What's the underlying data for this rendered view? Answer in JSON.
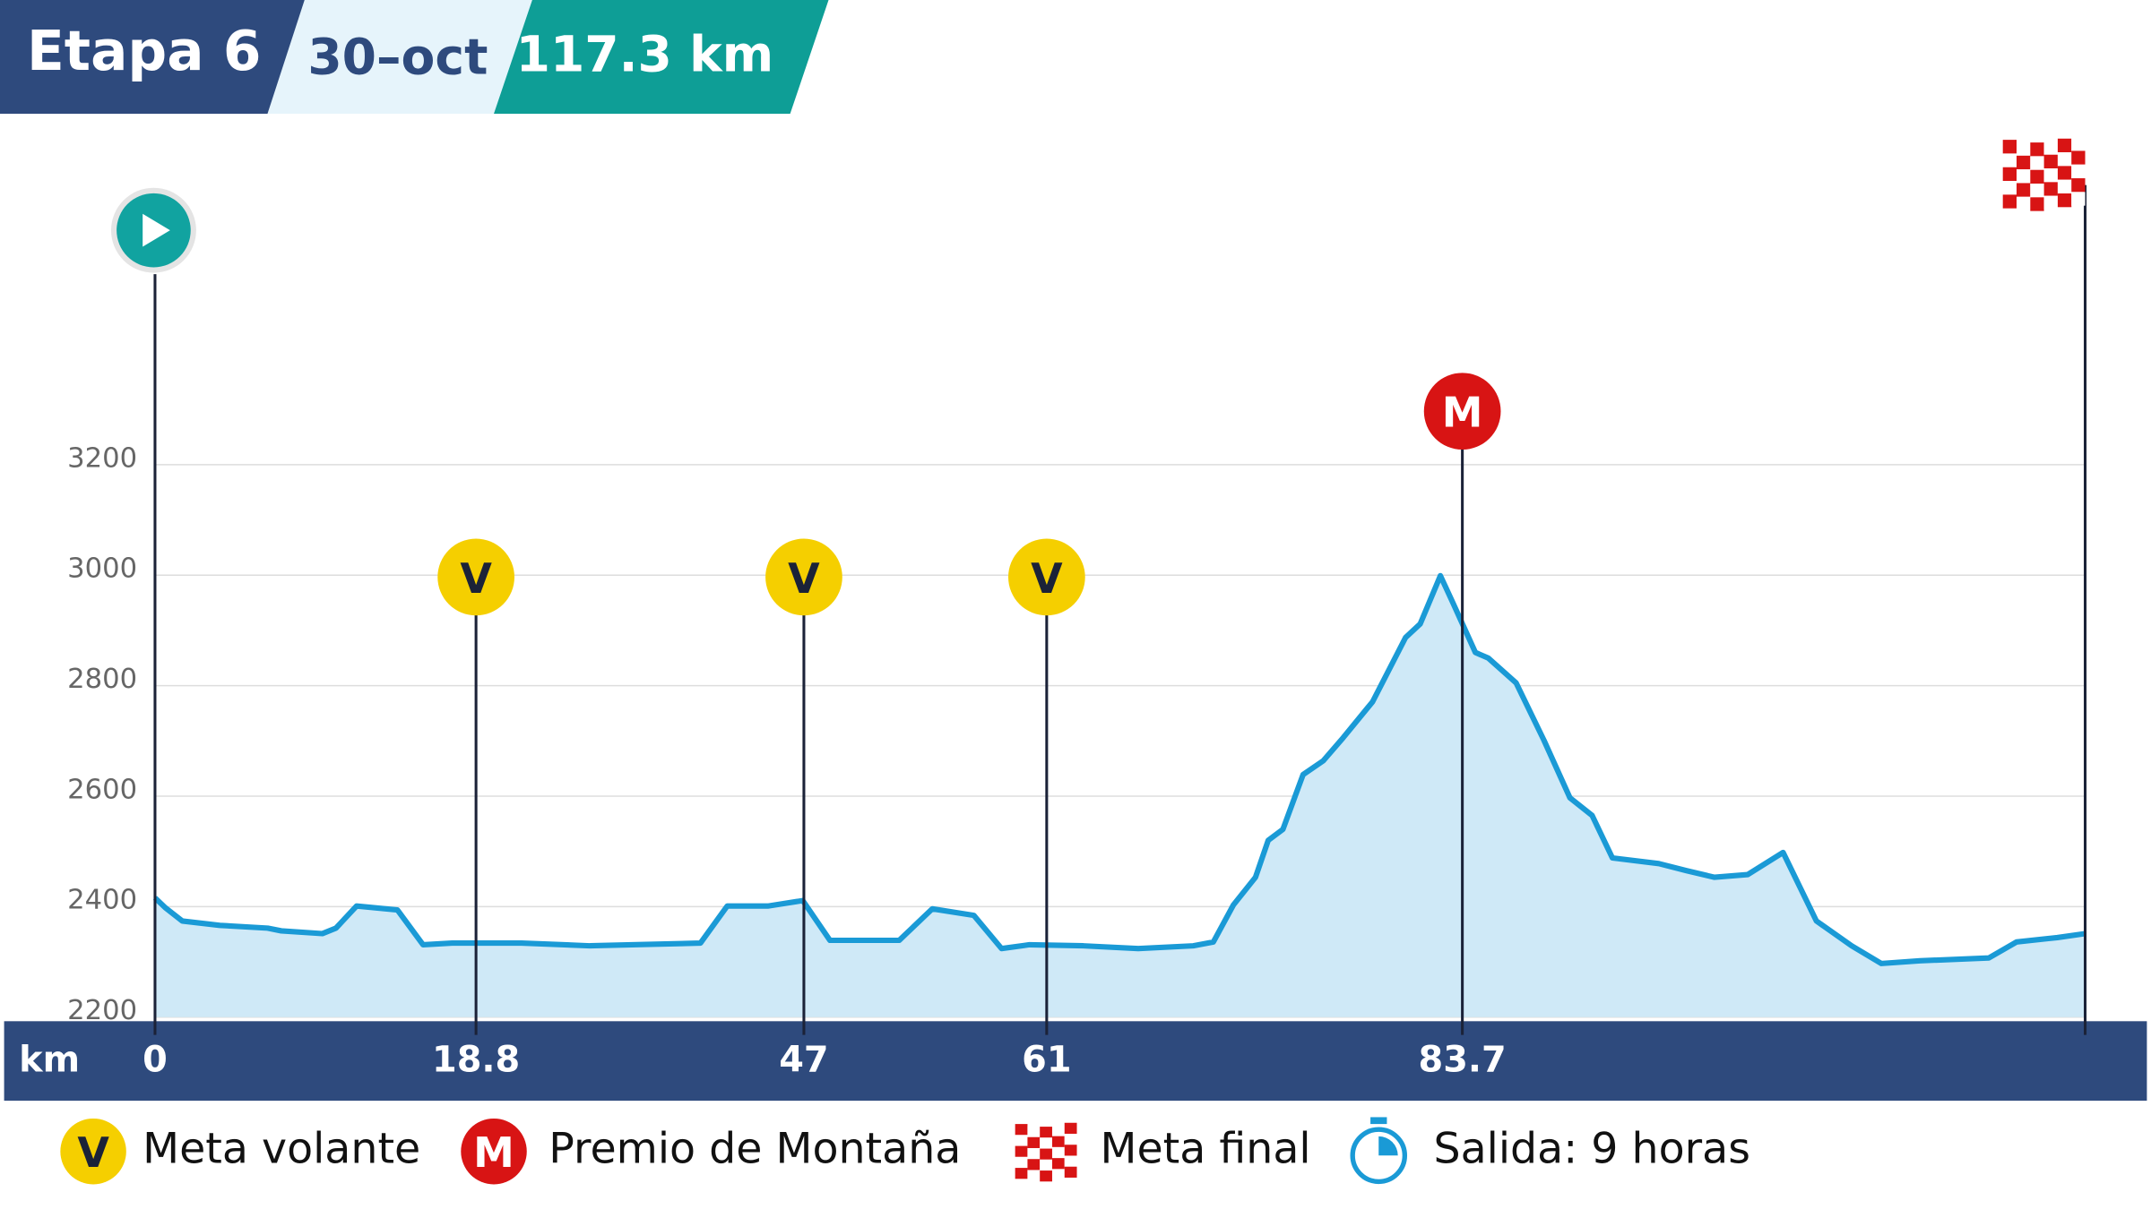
{
  "chart_data": {
    "type": "area",
    "title": "Etapa 6",
    "subtitle": "30–oct",
    "distance": "117.3 km",
    "x_axis_label": "km",
    "x": [
      0,
      0.6,
      1.6,
      3.8,
      6.6,
      7.4,
      9.8,
      10.6,
      11.8,
      14.2,
      15.7,
      17.4,
      22.7,
      28.6,
      32.2,
      38.1,
      40.4,
      43.9,
      46.9,
      48.5,
      52.5,
      54.4,
      56.8,
      58.4,
      60.0,
      63.0,
      66.0,
      69.0,
      70.1,
      71.2,
      72.4,
      73.1,
      73.9,
      75.0,
      76.1,
      77.2,
      78.8,
      80.6,
      81.4,
      82.5,
      83.2,
      84.4,
      85.1,
      86.6,
      88.1,
      89.5,
      90.7,
      91.8,
      94.3,
      95.8,
      97.3,
      99.1,
      101.0,
      102.8,
      104.7,
      106.3,
      108.4,
      112.1,
      113.6,
      115.8,
      117.3
    ],
    "values": [
      2416,
      2398,
      2374,
      2366,
      2361,
      2356,
      2351,
      2361,
      2401,
      2394,
      2331,
      2334,
      2334,
      2329,
      2331,
      2334,
      2401,
      2401,
      2411,
      2339,
      2339,
      2396,
      2384,
      2324,
      2331,
      2329,
      2324,
      2329,
      2336,
      2403,
      2453,
      2520,
      2540,
      2639,
      2664,
      2706,
      2771,
      2887,
      2912,
      2999,
      2949,
      2860,
      2850,
      2805,
      2701,
      2597,
      2565,
      2488,
      2478,
      2465,
      2453,
      2458,
      2498,
      2374,
      2329,
      2297,
      2302,
      2307,
      2336,
      2344,
      2351
    ],
    "color": "#1a9ad6",
    "fill": "#cfe9f7",
    "xlim": [
      0,
      117.3
    ],
    "xticks": [
      0,
      18.8,
      47,
      61,
      83.7
    ],
    "ylim": [
      2200,
      3200
    ],
    "yticks": [
      2200,
      2400,
      2600,
      2800,
      3000,
      3200
    ],
    "grid": true,
    "markers": [
      {
        "symbol": "V",
        "x": 18.8
      },
      {
        "symbol": "V",
        "x": 47
      },
      {
        "symbol": "V",
        "x": 61
      },
      {
        "symbol": "M",
        "x": 83.7
      }
    ],
    "legend": [
      {
        "symbol": "V",
        "label": "Meta volante"
      },
      {
        "symbol": "M",
        "label": "Premio de Montaña"
      },
      {
        "label": "Meta final"
      },
      {
        "label": "Salida: 9 horas"
      }
    ]
  }
}
